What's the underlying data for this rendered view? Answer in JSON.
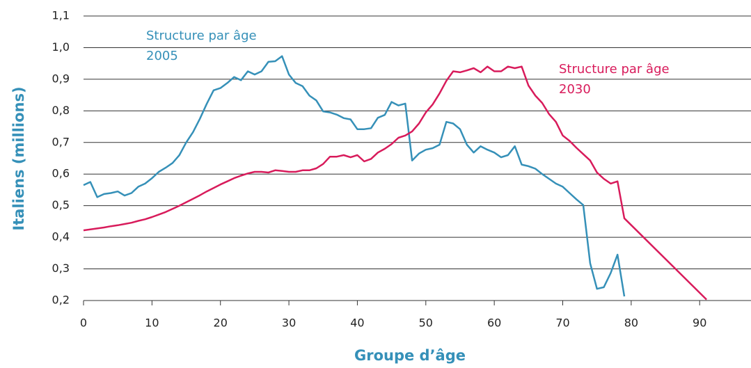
{
  "chart_data": {
    "type": "line",
    "x_label": "Groupe d’âge",
    "y_label": "Italiens (millions)",
    "xlim": [
      0,
      97.5
    ],
    "xticks": [
      0,
      10,
      20,
      30,
      40,
      50,
      60,
      70,
      80,
      90
    ],
    "ylim": [
      0.2,
      1.1
    ],
    "yticks": [
      {
        "value": 0.2,
        "label": "0,2"
      },
      {
        "value": 0.3,
        "label": "0,3"
      },
      {
        "value": 0.4,
        "label": "0,4"
      },
      {
        "value": 0.5,
        "label": "0,5"
      },
      {
        "value": 0.6,
        "label": "0,6"
      },
      {
        "value": 0.7,
        "label": "0,7"
      },
      {
        "value": 0.8,
        "label": "0,8"
      },
      {
        "value": 0.9,
        "label": "0,9"
      },
      {
        "value": 1.0,
        "label": "1,0"
      },
      {
        "value": 1.1,
        "label": "1,1"
      }
    ],
    "grid": true,
    "series": [
      {
        "name": "Structure par âge 2005",
        "label_lines": [
          "Structure par âge",
          "2005"
        ],
        "color": "#3590b8",
        "x": [
          0,
          1,
          2,
          3,
          4,
          5,
          6,
          7,
          8,
          9,
          10,
          11,
          12,
          13,
          14,
          15,
          16,
          17,
          18,
          19,
          20,
          21,
          22,
          23,
          24,
          25,
          26,
          27,
          28,
          29,
          30,
          31,
          32,
          33,
          34,
          35,
          36,
          37,
          38,
          39,
          40,
          41,
          42,
          43,
          44,
          45,
          46,
          47,
          48,
          49,
          50,
          51,
          52,
          53,
          54,
          55,
          56,
          57,
          58,
          59,
          60,
          61,
          62,
          63,
          64,
          65,
          66,
          67,
          68,
          69,
          70,
          71,
          72,
          73,
          74,
          75,
          76,
          77,
          78,
          79
        ],
        "values": [
          0.565,
          0.575,
          0.527,
          0.537,
          0.54,
          0.545,
          0.532,
          0.54,
          0.56,
          0.57,
          0.587,
          0.607,
          0.62,
          0.635,
          0.66,
          0.7,
          0.733,
          0.775,
          0.822,
          0.865,
          0.872,
          0.888,
          0.907,
          0.897,
          0.925,
          0.915,
          0.925,
          0.955,
          0.957,
          0.973,
          0.915,
          0.888,
          0.878,
          0.848,
          0.833,
          0.798,
          0.795,
          0.788,
          0.777,
          0.773,
          0.742,
          0.742,
          0.745,
          0.778,
          0.787,
          0.828,
          0.817,
          0.823,
          0.643,
          0.665,
          0.677,
          0.682,
          0.693,
          0.765,
          0.76,
          0.742,
          0.693,
          0.668,
          0.688,
          0.677,
          0.668,
          0.653,
          0.66,
          0.688,
          0.63,
          0.625,
          0.617,
          0.6,
          0.585,
          0.57,
          0.56,
          0.54,
          0.52,
          0.502,
          0.318,
          0.237,
          0.242,
          0.287,
          0.345,
          0.213
        ]
      },
      {
        "name": "Structure par âge 2030",
        "label_lines": [
          "Structure par âge",
          "2030"
        ],
        "color": "#d81b5b",
        "x": [
          0,
          1,
          2,
          3,
          4,
          5,
          6,
          7,
          8,
          9,
          10,
          11,
          12,
          13,
          14,
          15,
          16,
          17,
          18,
          19,
          20,
          21,
          22,
          23,
          24,
          25,
          26,
          27,
          28,
          29,
          30,
          31,
          32,
          33,
          34,
          35,
          36,
          37,
          38,
          39,
          40,
          41,
          42,
          43,
          44,
          45,
          46,
          47,
          48,
          49,
          50,
          51,
          52,
          53,
          54,
          55,
          56,
          57,
          58,
          59,
          60,
          61,
          62,
          63,
          64,
          65,
          66,
          67,
          68,
          69,
          70,
          71,
          72,
          73,
          74,
          75,
          76,
          77,
          78,
          79,
          91
        ],
        "values": [
          0.422,
          0.425,
          0.428,
          0.431,
          0.435,
          0.438,
          0.442,
          0.446,
          0.452,
          0.457,
          0.464,
          0.472,
          0.48,
          0.49,
          0.5,
          0.511,
          0.522,
          0.533,
          0.545,
          0.556,
          0.567,
          0.577,
          0.587,
          0.595,
          0.602,
          0.607,
          0.607,
          0.605,
          0.612,
          0.61,
          0.607,
          0.607,
          0.612,
          0.612,
          0.618,
          0.632,
          0.655,
          0.655,
          0.66,
          0.653,
          0.66,
          0.64,
          0.648,
          0.668,
          0.68,
          0.695,
          0.715,
          0.722,
          0.735,
          0.76,
          0.795,
          0.82,
          0.855,
          0.895,
          0.925,
          0.922,
          0.928,
          0.935,
          0.922,
          0.94,
          0.925,
          0.925,
          0.94,
          0.935,
          0.94,
          0.88,
          0.848,
          0.825,
          0.79,
          0.765,
          0.722,
          0.705,
          0.683,
          0.663,
          0.643,
          0.605,
          0.585,
          0.57,
          0.577,
          0.46,
          0.203
        ]
      }
    ]
  }
}
